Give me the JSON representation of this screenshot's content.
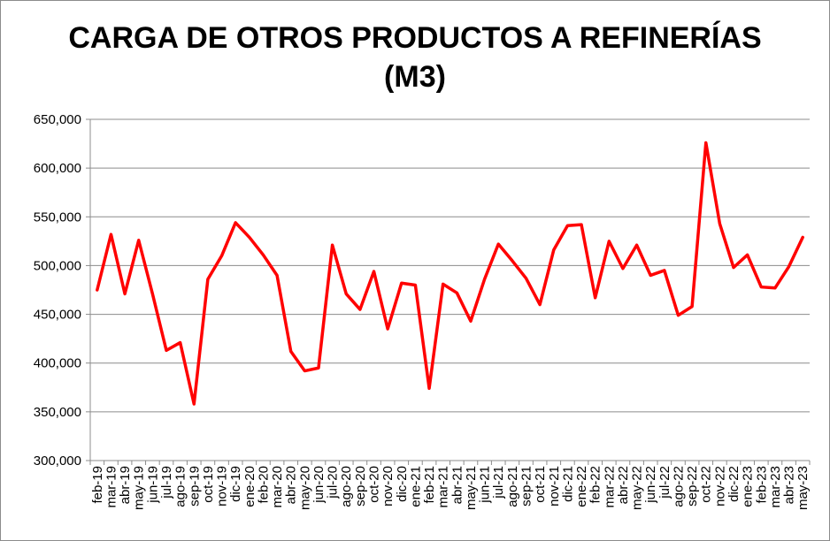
{
  "chart_data": {
    "type": "line",
    "title_lines": [
      "CARGA DE OTROS PRODUCTOS A REFINERÍAS",
      "(M3)"
    ],
    "xlabel": "",
    "ylabel": "",
    "ylim": [
      300000,
      650000
    ],
    "yticks": [
      300000,
      350000,
      400000,
      450000,
      500000,
      550000,
      600000,
      650000
    ],
    "ytick_labels": [
      "300,000",
      "350,000",
      "400,000",
      "450,000",
      "500,000",
      "550,000",
      "600,000",
      "650,000"
    ],
    "grid": true,
    "legend": "none",
    "categories": [
      "feb-19",
      "mar-19",
      "abr-19",
      "may-19",
      "jun-19",
      "jul-19",
      "ago-19",
      "sep-19",
      "oct-19",
      "nov-19",
      "dic-19",
      "ene-20",
      "feb-20",
      "mar-20",
      "abr-20",
      "may-20",
      "jun-20",
      "jul-20",
      "ago-20",
      "sep-20",
      "oct-20",
      "nov-20",
      "dic-20",
      "ene-21",
      "feb-21",
      "mar-21",
      "abr-21",
      "may-21",
      "jun-21",
      "jul-21",
      "ago-21",
      "sep-21",
      "oct-21",
      "nov-21",
      "dic-21",
      "ene-22",
      "feb-22",
      "mar-22",
      "abr-22",
      "may-22",
      "jun-22",
      "jul-22",
      "ago-22",
      "sep-22",
      "oct-22",
      "nov-22",
      "dic-22",
      "ene-23",
      "feb-23",
      "mar-23",
      "abr-23",
      "may-23"
    ],
    "series": [
      {
        "color": "#ff0000",
        "values": [
          475000,
          532000,
          471000,
          526000,
          471000,
          413000,
          421000,
          358000,
          486000,
          510000,
          544000,
          529000,
          511000,
          490000,
          412000,
          392000,
          395000,
          521000,
          471000,
          455000,
          494000,
          435000,
          482000,
          480000,
          374000,
          481000,
          472000,
          443000,
          486000,
          522000,
          505000,
          487000,
          460000,
          516000,
          541000,
          542000,
          467000,
          525000,
          497000,
          521000,
          490000,
          495000,
          449000,
          458000,
          626000,
          543000,
          498000,
          511000,
          478000,
          477000,
          499000,
          529000
        ]
      }
    ]
  }
}
